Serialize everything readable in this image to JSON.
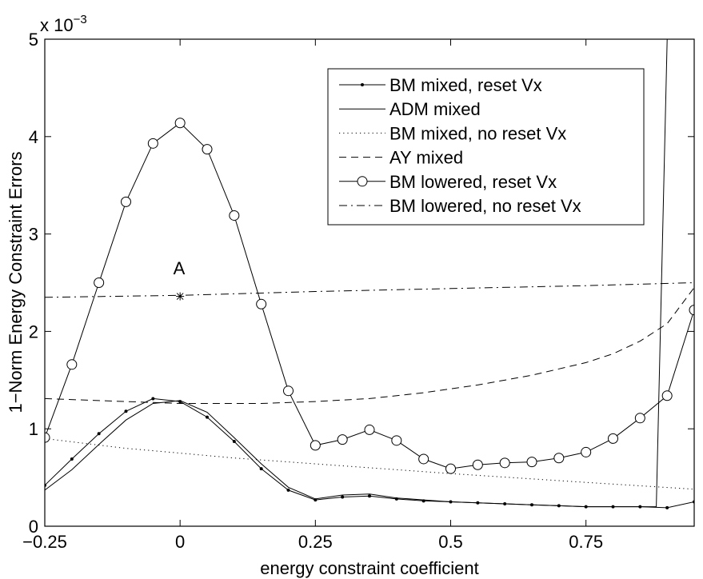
{
  "chart_data": {
    "type": "line",
    "title": "",
    "xlabel": "energy constraint coefficient",
    "ylabel": "1−Norm Energy Constraint Errors",
    "scale_label": "x 10",
    "scale_exponent": "−3",
    "xlim": [
      -0.25,
      0.95
    ],
    "ylim": [
      0,
      5
    ],
    "grid": false,
    "legend_position": "top-right",
    "x_ticks": [
      -0.25,
      0,
      0.25,
      0.5,
      0.75
    ],
    "x_tick_labels": [
      "−0.25",
      "0",
      "0.25",
      "0.5",
      "0.75"
    ],
    "y_ticks": [
      0,
      1,
      2,
      3,
      4,
      5
    ],
    "y_tick_labels": [
      "0",
      "1",
      "2",
      "3",
      "4",
      "5"
    ],
    "annotation": {
      "text": "A",
      "x": 0,
      "y": 2.36,
      "marker": "star"
    },
    "series": [
      {
        "name": "BM mixed, reset Vx",
        "style": "dot-solid",
        "x": [
          -0.25,
          -0.2,
          -0.15,
          -0.1,
          -0.05,
          0,
          0.05,
          0.1,
          0.15,
          0.2,
          0.25,
          0.3,
          0.35,
          0.4,
          0.45,
          0.5,
          0.55,
          0.6,
          0.65,
          0.7,
          0.75,
          0.8,
          0.85,
          0.9,
          0.95
        ],
        "y": [
          0.42,
          0.69,
          0.95,
          1.18,
          1.31,
          1.28,
          1.12,
          0.87,
          0.59,
          0.37,
          0.27,
          0.3,
          0.31,
          0.28,
          0.26,
          0.25,
          0.24,
          0.23,
          0.22,
          0.21,
          0.2,
          0.2,
          0.2,
          0.19,
          0.25
        ]
      },
      {
        "name": "ADM mixed",
        "style": "solid",
        "x": [
          -0.25,
          -0.2,
          -0.15,
          -0.1,
          -0.05,
          0,
          0.05,
          0.1,
          0.15,
          0.2,
          0.25,
          0.3,
          0.35,
          0.4,
          0.45,
          0.5,
          0.55,
          0.6,
          0.65,
          0.7,
          0.75,
          0.8,
          0.85,
          0.88,
          0.9,
          0.9
        ],
        "y": [
          0.37,
          0.58,
          0.84,
          1.09,
          1.26,
          1.29,
          1.17,
          0.91,
          0.64,
          0.4,
          0.28,
          0.32,
          0.33,
          0.29,
          0.27,
          0.25,
          0.24,
          0.23,
          0.22,
          0.21,
          0.2,
          0.2,
          0.2,
          0.2,
          5.0,
          5.0
        ]
      },
      {
        "name": "BM mixed, no reset Vx",
        "style": "dotted",
        "x": [
          -0.25,
          -0.1,
          0,
          0.1,
          0.25,
          0.5,
          0.75,
          0.95
        ],
        "y": [
          0.9,
          0.8,
          0.75,
          0.7,
          0.64,
          0.54,
          0.45,
          0.38
        ]
      },
      {
        "name": "AY mixed",
        "style": "dashed",
        "x": [
          -0.25,
          -0.15,
          -0.05,
          0,
          0.05,
          0.15,
          0.25,
          0.35,
          0.45,
          0.55,
          0.65,
          0.75,
          0.8,
          0.85,
          0.9,
          0.95
        ],
        "y": [
          1.31,
          1.29,
          1.27,
          1.26,
          1.26,
          1.26,
          1.28,
          1.31,
          1.37,
          1.45,
          1.55,
          1.68,
          1.77,
          1.9,
          2.08,
          2.45
        ]
      },
      {
        "name": "BM lowered, reset Vx",
        "style": "circle-solid",
        "x": [
          -0.25,
          -0.2,
          -0.15,
          -0.1,
          -0.05,
          0,
          0.05,
          0.1,
          0.15,
          0.2,
          0.25,
          0.3,
          0.35,
          0.4,
          0.45,
          0.5,
          0.55,
          0.6,
          0.65,
          0.7,
          0.75,
          0.8,
          0.85,
          0.9,
          0.95
        ],
        "y": [
          0.91,
          1.66,
          2.5,
          3.33,
          3.93,
          4.14,
          3.87,
          3.19,
          2.28,
          1.39,
          0.83,
          0.89,
          0.99,
          0.88,
          0.69,
          0.59,
          0.63,
          0.65,
          0.66,
          0.7,
          0.76,
          0.9,
          1.11,
          1.34,
          2.22
        ]
      },
      {
        "name": "BM lowered, no reset Vx",
        "style": "dash-dot",
        "x": [
          -0.25,
          0,
          0.25,
          0.5,
          0.75,
          0.95
        ],
        "y": [
          2.35,
          2.37,
          2.41,
          2.44,
          2.47,
          2.5
        ]
      }
    ]
  }
}
